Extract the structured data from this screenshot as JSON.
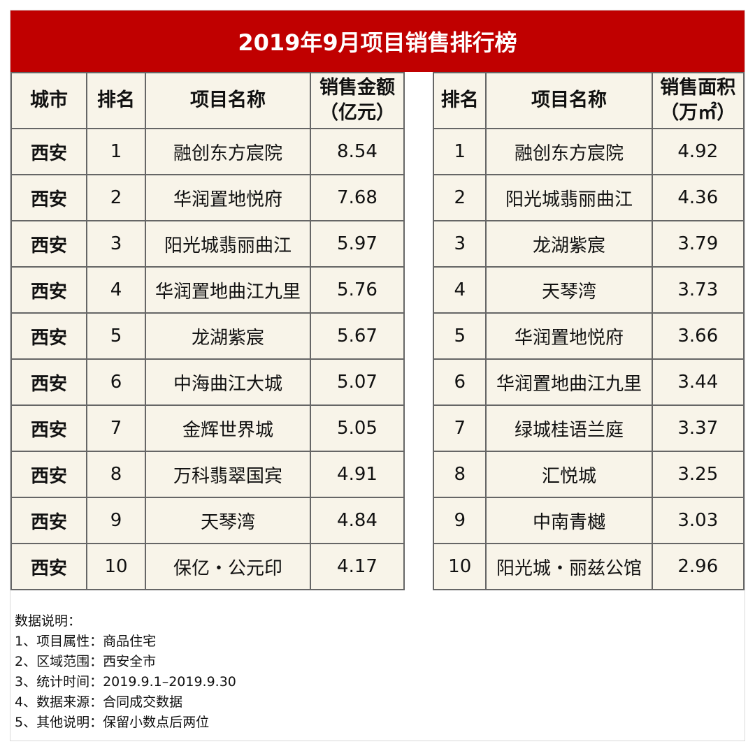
{
  "title": "2019年9月项目销售排行榜",
  "left": {
    "headers": {
      "city": "城市",
      "rank": "排名",
      "name": "项目名称",
      "value_line1": "销售金额",
      "value_line2": "（亿元）"
    },
    "rows": [
      {
        "city": "西安",
        "rank": "1",
        "name": "融创东方宸院",
        "value": "8.54"
      },
      {
        "city": "西安",
        "rank": "2",
        "name": "华润置地悦府",
        "value": "7.68"
      },
      {
        "city": "西安",
        "rank": "3",
        "name": "阳光城翡丽曲江",
        "value": "5.97"
      },
      {
        "city": "西安",
        "rank": "4",
        "name": "华润置地曲江九里",
        "value": "5.76"
      },
      {
        "city": "西安",
        "rank": "5",
        "name": "龙湖紫宸",
        "value": "5.67"
      },
      {
        "city": "西安",
        "rank": "6",
        "name": "中海曲江大城",
        "value": "5.07"
      },
      {
        "city": "西安",
        "rank": "7",
        "name": "金辉世界城",
        "value": "5.05"
      },
      {
        "city": "西安",
        "rank": "8",
        "name": "万科翡翠国宾",
        "value": "4.91"
      },
      {
        "city": "西安",
        "rank": "9",
        "name": "天琴湾",
        "value": "4.84"
      },
      {
        "city": "西安",
        "rank": "10",
        "name": "保亿・公元印",
        "value": "4.17"
      }
    ]
  },
  "right": {
    "headers": {
      "rank": "排名",
      "name": "项目名称",
      "value_line1": "销售面积",
      "value_line2": "（万㎡）"
    },
    "rows": [
      {
        "rank": "1",
        "name": "融创东方宸院",
        "value": "4.92"
      },
      {
        "rank": "2",
        "name": "阳光城翡丽曲江",
        "value": "4.36"
      },
      {
        "rank": "3",
        "name": "龙湖紫宸",
        "value": "3.79"
      },
      {
        "rank": "4",
        "name": "天琴湾",
        "value": "3.73"
      },
      {
        "rank": "5",
        "name": "华润置地悦府",
        "value": "3.66"
      },
      {
        "rank": "6",
        "name": "华润置地曲江九里",
        "value": "3.44"
      },
      {
        "rank": "7",
        "name": "绿城桂语兰庭",
        "value": "3.37"
      },
      {
        "rank": "8",
        "name": "汇悦城",
        "value": "3.25"
      },
      {
        "rank": "9",
        "name": "中南青樾",
        "value": "3.03"
      },
      {
        "rank": "10",
        "name": "阳光城・丽兹公馆",
        "value": "2.96"
      }
    ]
  },
  "notes": {
    "heading": "数据说明：",
    "items": [
      "1、项目属性：商品住宅",
      "2、区域范围：西安全市",
      "3、统计时间：2019.9.1–2019.9.30",
      "4、数据来源：合同成交数据",
      "5、其他说明：保留小数点后两位"
    ]
  },
  "colors": {
    "title_bar": "#c00000",
    "title_text": "#ffffff",
    "cell_background": "#f8f4e9",
    "grid": "#666666"
  }
}
